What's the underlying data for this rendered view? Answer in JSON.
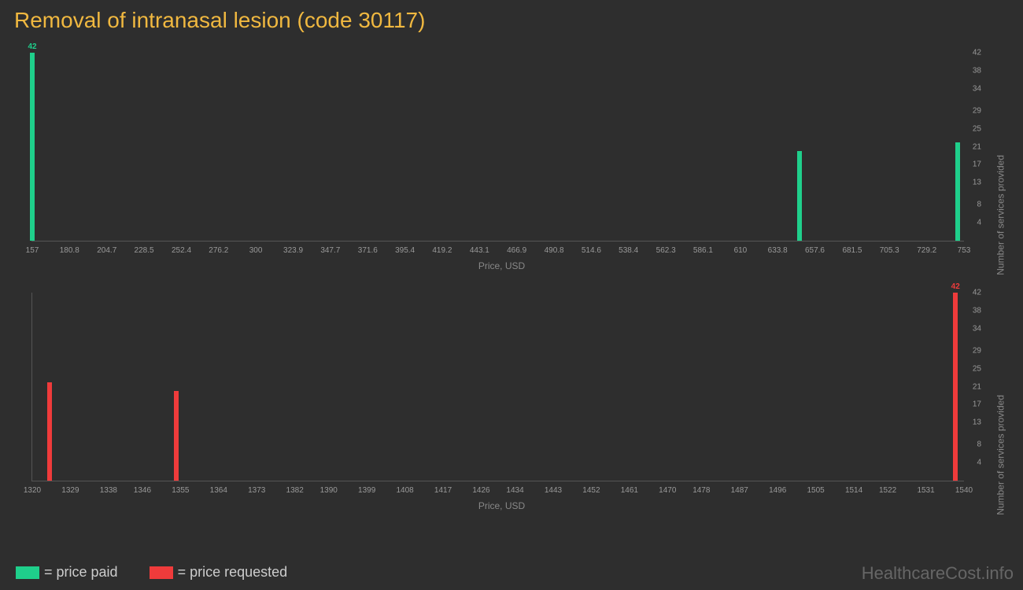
{
  "title": "Removal of intranasal lesion (code 30117)",
  "watermark": "HealthcareCost.info",
  "colors": {
    "paid": "#1fcf8b",
    "requested": "#ef3b3b",
    "background": "#2e2e2e",
    "axis": "#555555",
    "tick_text": "#999999",
    "title": "#f0b840"
  },
  "legend": {
    "paid": "= price paid",
    "requested": "= price requested"
  },
  "axis_labels": {
    "x": "Price, USD",
    "y": "Number of services provided"
  },
  "y_ticks": [
    4,
    8,
    13,
    17,
    21,
    25,
    29,
    34,
    38,
    42
  ],
  "y_max": 42,
  "chart1": {
    "type": "bar",
    "x_min": 157,
    "x_max": 753,
    "x_ticks": [
      157,
      180.8,
      204.7,
      228.5,
      252.4,
      276.2,
      300,
      323.9,
      347.7,
      371.6,
      395.4,
      419.2,
      443.1,
      466.9,
      490.8,
      514.6,
      538.4,
      562.3,
      586.1,
      610,
      633.8,
      657.6,
      681.5,
      705.3,
      729.2,
      753
    ],
    "bars": [
      {
        "x": 157,
        "value": 42,
        "label": "42",
        "show_label": true
      },
      {
        "x": 648,
        "value": 20,
        "show_label": false
      },
      {
        "x": 749,
        "value": 22,
        "show_label": false
      }
    ],
    "bar_color": "#1fcf8b"
  },
  "chart2": {
    "type": "bar",
    "x_min": 1320,
    "x_max": 1540,
    "x_ticks": [
      1320,
      1329,
      1338,
      1346,
      1355,
      1364,
      1373,
      1382,
      1390,
      1399,
      1408,
      1417,
      1426,
      1434,
      1443,
      1452,
      1461,
      1470,
      1478,
      1487,
      1496,
      1505,
      1514,
      1522,
      1531,
      1540
    ],
    "bars": [
      {
        "x": 1324,
        "value": 22,
        "show_label": false
      },
      {
        "x": 1354,
        "value": 20,
        "show_label": false
      },
      {
        "x": 1538,
        "value": 42,
        "label": "42",
        "show_label": true
      }
    ],
    "bar_color": "#ef3b3b"
  }
}
